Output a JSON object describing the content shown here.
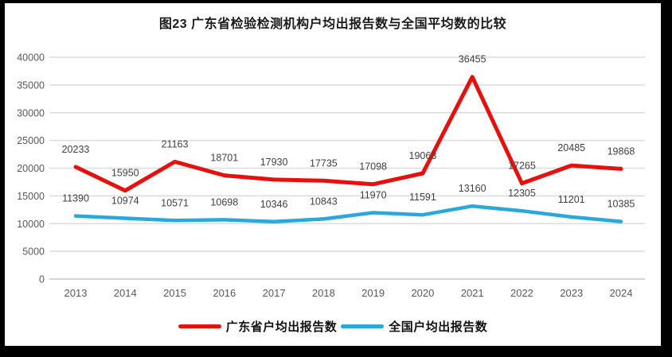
{
  "title": "图23  广东省检验检测机构户均出报告数与全国平均数的比较",
  "colors": {
    "guangdong": "#e8100c",
    "national": "#29a8dc",
    "gridline": "#dcdcdc",
    "zero_line": "#c8c8c8",
    "data_label": "#404040",
    "tick_label": "#595959",
    "border": "#000000",
    "background": "#ffffff"
  },
  "chart_data": {
    "type": "line",
    "x": [
      2013,
      2014,
      2015,
      2016,
      2017,
      2018,
      2019,
      2020,
      2021,
      2022,
      2023,
      2024
    ],
    "series": [
      {
        "name": "广东省户均出报告数",
        "color_key": "guangdong",
        "values": [
          20233,
          15950,
          21163,
          18701,
          17930,
          17735,
          17098,
          19063,
          36455,
          17265,
          20485,
          19868
        ]
      },
      {
        "name": "全国户均出报告数",
        "color_key": "national",
        "values": [
          11390,
          10974,
          10571,
          10698,
          10346,
          10843,
          11970,
          11591,
          13160,
          12305,
          11201,
          10385
        ]
      }
    ],
    "ylim": [
      0,
      40000
    ],
    "yticks": [
      0,
      5000,
      10000,
      15000,
      20000,
      25000,
      30000,
      35000,
      40000
    ],
    "grid": true,
    "data_labels": true,
    "legend_position": "bottom"
  },
  "legend": {
    "items": [
      {
        "label": "广东省户均出报告数",
        "color_key": "guangdong"
      },
      {
        "label": "全国户均出报告数",
        "color_key": "national"
      }
    ]
  }
}
